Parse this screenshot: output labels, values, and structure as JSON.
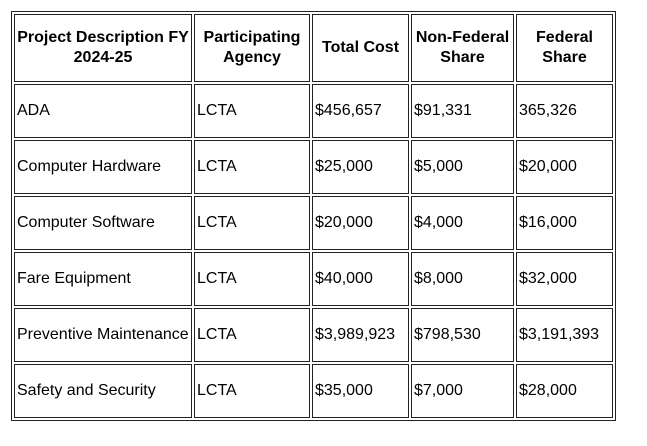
{
  "table": {
    "headers": [
      "Project Description FY 2024-25",
      "Participating Agency",
      "Total Cost",
      "Non-Federal Share",
      "Federal Share"
    ],
    "rows": [
      [
        "ADA",
        "LCTA",
        "$456,657",
        "$91,331",
        "365,326"
      ],
      [
        "Computer Hardware",
        "LCTA",
        "$25,000",
        "$5,000",
        "$20,000"
      ],
      [
        "Computer Software",
        "LCTA",
        "$20,000",
        "$4,000",
        "$16,000"
      ],
      [
        "Fare Equipment",
        "LCTA",
        "$40,000",
        "$8,000",
        "$32,000"
      ],
      [
        "Preventive Maintenance",
        "LCTA",
        "$3,989,923",
        "$798,530",
        "$3,191,393"
      ],
      [
        "Safety and Security",
        "LCTA",
        "$35,000",
        "$7,000",
        "$28,000"
      ]
    ]
  }
}
